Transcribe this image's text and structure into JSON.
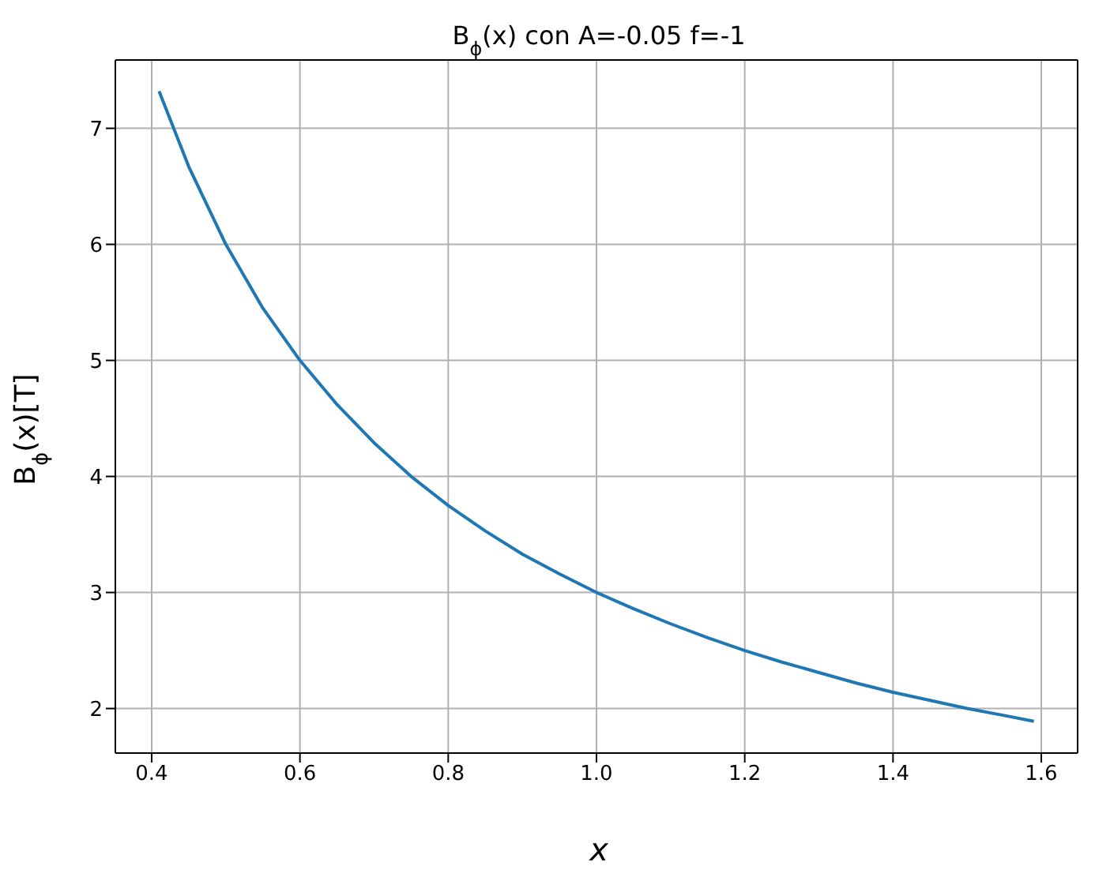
{
  "chart_data": {
    "type": "line",
    "title": "B$_{ϕ}$(x) con A=-0.05 f=-1",
    "xlabel": "x",
    "ylabel": "B$_{ϕ}$(x)[T]",
    "x": [
      0.41,
      0.45,
      0.5,
      0.55,
      0.6,
      0.65,
      0.7,
      0.75,
      0.8,
      0.85,
      0.9,
      0.95,
      1.0,
      1.05,
      1.1,
      1.15,
      1.2,
      1.25,
      1.3,
      1.35,
      1.4,
      1.45,
      1.5,
      1.55,
      1.59
    ],
    "series": [
      {
        "color": "#1f77b4",
        "values": [
          7.32,
          6.67,
          6.0,
          5.45,
          5.0,
          4.62,
          4.29,
          4.0,
          3.75,
          3.53,
          3.33,
          3.16,
          3.0,
          2.86,
          2.73,
          2.61,
          2.5,
          2.4,
          2.31,
          2.22,
          2.14,
          2.07,
          2.0,
          1.94,
          1.89
        ]
      }
    ],
    "xlim": [
      0.351,
      1.649
    ],
    "ylim": [
      1.616,
      7.589
    ],
    "xticks": [
      {
        "value": 0.4,
        "label": "0.4"
      },
      {
        "value": 0.6,
        "label": "0.6"
      },
      {
        "value": 0.8,
        "label": "0.8"
      },
      {
        "value": 1.0,
        "label": "1.0"
      },
      {
        "value": 1.2,
        "label": "1.2"
      },
      {
        "value": 1.4,
        "label": "1.4"
      },
      {
        "value": 1.6,
        "label": "1.6"
      }
    ],
    "yticks": [
      2,
      3,
      4,
      5,
      6,
      7
    ],
    "grid": true,
    "marker": "none",
    "line_style": "solid",
    "legend": false
  }
}
